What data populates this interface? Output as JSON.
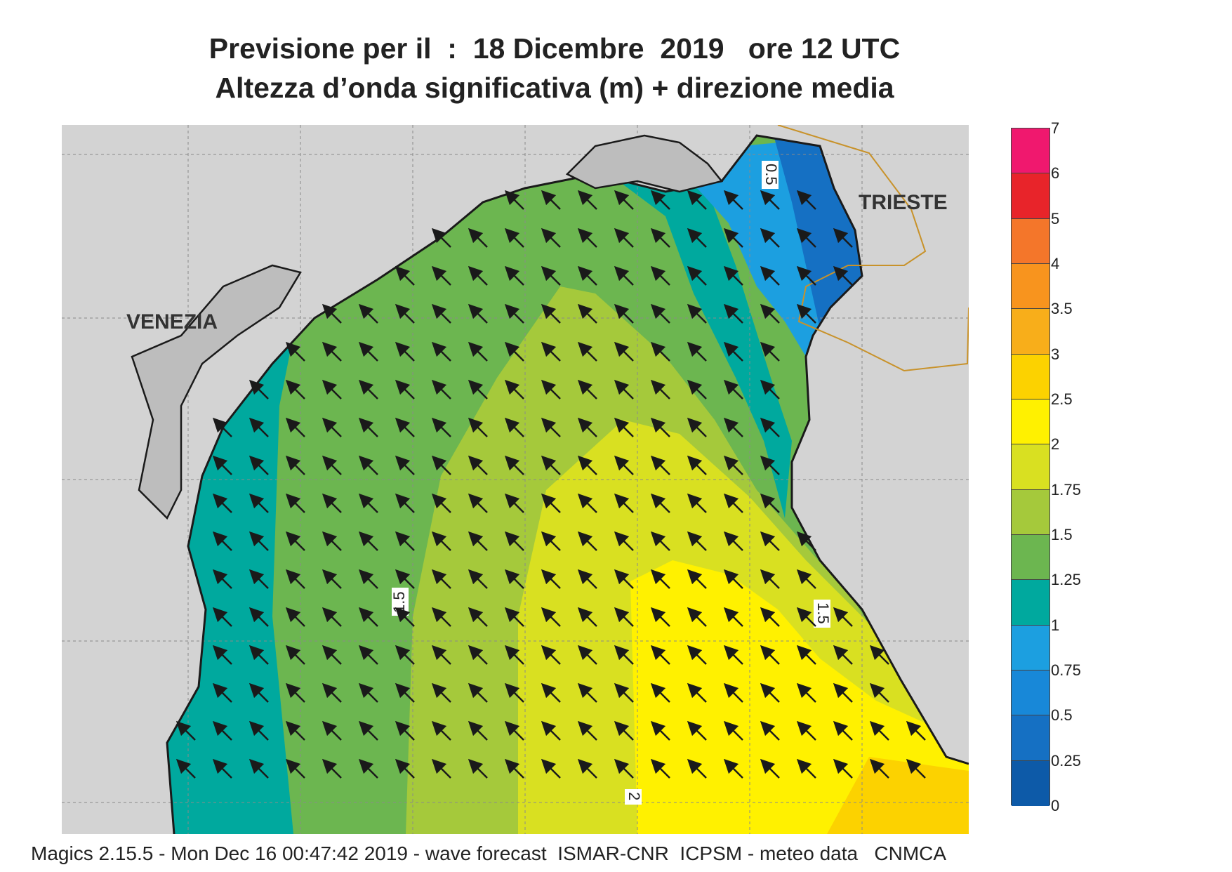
{
  "title": {
    "line1": "Previsione per il  :  18 Dicembre  2019   ore 12 UTC",
    "line2": "Altezza d’onda significativa (m) + direzione media"
  },
  "map": {
    "cities": [
      {
        "name": "VENEZIA"
      },
      {
        "name": "TRIESTE"
      }
    ],
    "contour_labels": [
      "0.5",
      "1.5",
      "1.5",
      "2"
    ],
    "wave_direction": "south-east to north-west"
  },
  "colorbar": {
    "labels": [
      "7",
      "6",
      "5",
      "4",
      "3.5",
      "3",
      "2.5",
      "2",
      "1.75",
      "1.5",
      "1.25",
      "1",
      "0.75",
      "0.5",
      "0.25",
      "0"
    ],
    "colors": [
      "#f0186e",
      "#e8242a",
      "#f4762a",
      "#f8941e",
      "#f8ae1a",
      "#fcd200",
      "#fff100",
      "#d9e021",
      "#a5c93b",
      "#6cb650",
      "#00a99e",
      "#1c9fe0",
      "#1888d8",
      "#1570c3",
      "#0d5aa8"
    ]
  },
  "footer": "Magics 2.15.5 - Mon Dec 16 00:47:42 2019 - wave forecast  ISMAR-CNR  ICPSM - meteo data   CNMCA"
}
